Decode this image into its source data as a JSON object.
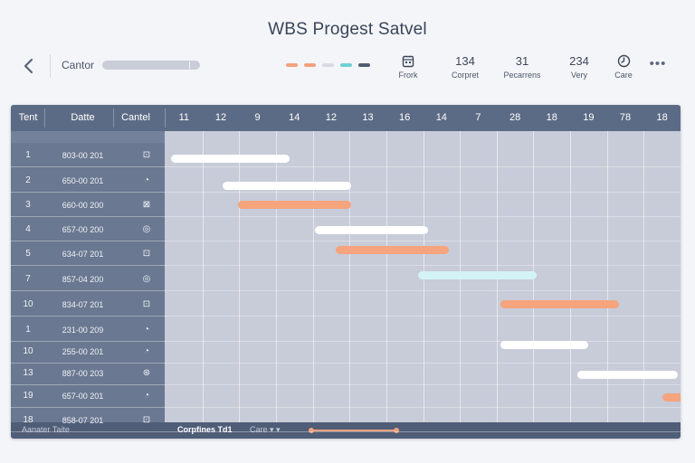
{
  "title": "WBS Progest Satvel",
  "toolbar": {
    "search_label": "Cantor",
    "swatch_colors": [
      "#f2a27c",
      "#f2a27c",
      "#d8dbe3",
      "#6ed0d3",
      "#4f5d72"
    ],
    "stats": [
      {
        "value": "",
        "label": "Frork",
        "icon": "calendar-icon"
      },
      {
        "value": "134",
        "label": "Corpret"
      },
      {
        "value": "31",
        "label": "Pecarrens"
      },
      {
        "value": "234",
        "label": "Very"
      },
      {
        "value": "",
        "label": "Care",
        "icon": "clock-icon"
      }
    ],
    "more_label": "•••"
  },
  "table": {
    "headers": [
      "Tent",
      "Datte",
      "Cantel"
    ],
    "timeline_columns": [
      "11",
      "12",
      "9",
      "14",
      "12",
      "13",
      "16",
      "14",
      "7",
      "28",
      "18",
      "19",
      "78",
      "18"
    ],
    "rows": [
      {
        "id": "1",
        "date": "803-00 201",
        "icon": "⊡"
      },
      {
        "id": "2",
        "date": "650-00 201",
        "icon": "◔"
      },
      {
        "id": "3",
        "date": "660-00 200",
        "icon": "⊠"
      },
      {
        "id": "4",
        "date": "657-00 200",
        "icon": "◎"
      },
      {
        "id": "5",
        "date": "634-07 201",
        "icon": "⊡"
      },
      {
        "id": "7",
        "date": "857-04 200",
        "icon": "◎"
      },
      {
        "id": "10",
        "date": "834-07 201",
        "icon": "⊡"
      },
      {
        "id": "1",
        "date": "231-00 209",
        "icon": "◔"
      },
      {
        "id": "10",
        "date": "255-00 201",
        "icon": "◔"
      },
      {
        "id": "13",
        "date": "887-00 203",
        "icon": "⊛"
      },
      {
        "id": "19",
        "date": "657-00 201",
        "icon": "◔"
      },
      {
        "id": "18",
        "date": "858-07 201",
        "icon": "⊡"
      }
    ],
    "bars": [
      {
        "start": 0.01,
        "end": 0.24,
        "color": "#ffffff"
      },
      {
        "start": 0.11,
        "end": 0.36,
        "color": "#ffffff"
      },
      {
        "start": 0.14,
        "end": 0.36,
        "color": "#f5a47d"
      },
      {
        "start": 0.29,
        "end": 0.51,
        "color": "#ffffff"
      },
      {
        "start": 0.33,
        "end": 0.55,
        "color": "#f5a47d"
      },
      {
        "start": 0.49,
        "end": 0.72,
        "color": "#d3f3f6"
      },
      {
        "start": 0.65,
        "end": 0.88,
        "color": "#f5a47d"
      },
      {
        "start": 0.65,
        "end": 0.82,
        "color": "#ffffff"
      },
      {
        "start": 0.8,
        "end": 0.995,
        "color": "#ffffff"
      },
      {
        "start": 0.965,
        "end": 1.05,
        "color": "#f5a47d"
      }
    ]
  },
  "footer": {
    "left_label": "Aanater Taite",
    "middle_label": "Corpfines Td1",
    "select_label": "Care",
    "select_arrows": "▾ ▾"
  }
}
